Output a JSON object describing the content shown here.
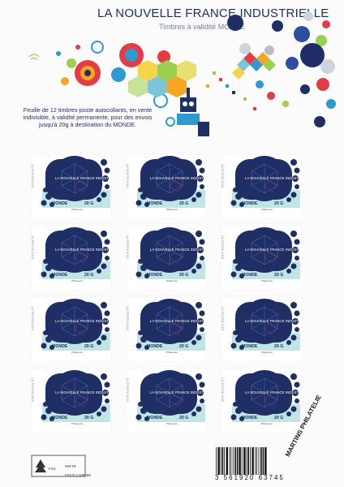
{
  "header": {
    "title": "LA NOUVELLE FRANCE INDUSTRIELLE",
    "subtitle": "Timbres à validité MONDE",
    "description": "Feuille de 12 timbres-poste autocollants, en vente indivisible, à validité permanente, pour des envois jusqu'à 20g à destination du MONDE."
  },
  "stamp": {
    "side_text": "LA POSTE 2015",
    "name": "LA NOUVELLE FRANCE INDUSTRIELLE",
    "destination": "MONDE",
    "value": "20 G",
    "signature": "Philaposte"
  },
  "stamps": [
    {
      "id": 1
    },
    {
      "id": 2
    },
    {
      "id": 3
    },
    {
      "id": 4
    },
    {
      "id": 5
    },
    {
      "id": 6
    },
    {
      "id": 7
    },
    {
      "id": 8
    },
    {
      "id": 9
    },
    {
      "id": 10
    },
    {
      "id": 11
    },
    {
      "id": 12
    }
  ],
  "footer": {
    "fsc_label": "FSC",
    "mixte": "MIXTE",
    "fsc_code": "FSC® C108068",
    "barcode_digits": "3 561920 63745",
    "watermark": "MARTINS PHILATELIE"
  },
  "colors": {
    "title": "#1f2f66",
    "subtitle": "#6a7ec7",
    "stamp_blue": "#1f2f66",
    "stamp_teal": "#bfe6e4"
  }
}
